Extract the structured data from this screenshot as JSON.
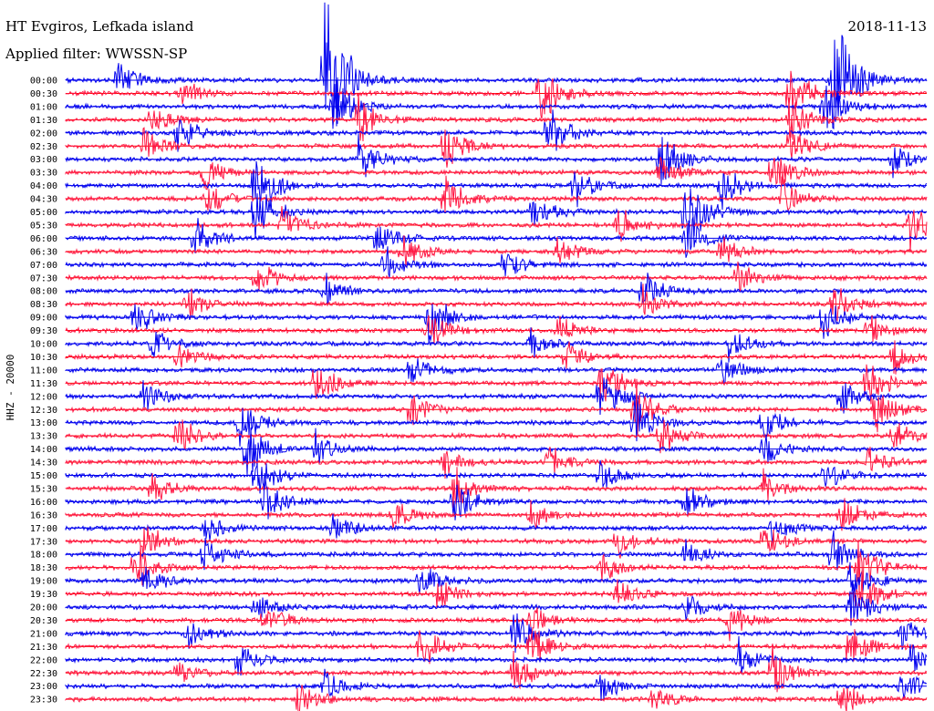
{
  "header": {
    "station": "HT Evgiros, Lefkada island",
    "date": "2018-11-13",
    "filter": "Applied filter: WWSSN-SP"
  },
  "chart_data": {
    "type": "line",
    "title": "HT Evgiros, Lefkada island",
    "ylabel": "HHZ - 20000",
    "row_times": [
      "00:00",
      "00:30",
      "01:00",
      "01:30",
      "02:00",
      "02:30",
      "03:00",
      "03:30",
      "04:00",
      "04:30",
      "05:00",
      "05:30",
      "06:00",
      "06:30",
      "07:00",
      "07:30",
      "08:00",
      "08:30",
      "09:00",
      "09:30",
      "10:00",
      "10:30",
      "11:00",
      "11:30",
      "12:00",
      "12:30",
      "13:00",
      "13:30",
      "14:00",
      "14:30",
      "15:00",
      "15:30",
      "16:00",
      "16:30",
      "17:00",
      "17:30",
      "18:00",
      "18:30",
      "19:00",
      "19:30",
      "20:00",
      "20:30",
      "21:00",
      "21:30",
      "22:00",
      "22:30",
      "23:00",
      "23:30"
    ],
    "trace_colors": [
      "#0000ee",
      "#ff1744"
    ],
    "baseline_color": "#ff0000",
    "events": [
      {
        "row": 0,
        "x": 0.3,
        "amp": 9
      },
      {
        "row": 0,
        "x": 0.06,
        "amp": 1.5
      },
      {
        "row": 0,
        "x": 0.89,
        "amp": 8
      },
      {
        "row": 1,
        "x": 0.13,
        "amp": 1.6
      },
      {
        "row": 1,
        "x": 0.55,
        "amp": 3
      },
      {
        "row": 1,
        "x": 0.84,
        "amp": 2.5
      },
      {
        "row": 2,
        "x": 0.31,
        "amp": 2.5
      },
      {
        "row": 2,
        "x": 0.88,
        "amp": 2.5
      },
      {
        "row": 3,
        "x": 0.1,
        "amp": 1.3
      },
      {
        "row": 3,
        "x": 0.34,
        "amp": 2
      },
      {
        "row": 3,
        "x": 0.84,
        "amp": 2
      },
      {
        "row": 4,
        "x": 0.13,
        "amp": 1.6
      },
      {
        "row": 4,
        "x": 0.56,
        "amp": 2.5
      },
      {
        "row": 5,
        "x": 0.09,
        "amp": 1.6
      },
      {
        "row": 5,
        "x": 0.44,
        "amp": 2
      },
      {
        "row": 5,
        "x": 0.84,
        "amp": 1.8
      },
      {
        "row": 6,
        "x": 0.34,
        "amp": 2.2
      },
      {
        "row": 6,
        "x": 0.69,
        "amp": 2.5
      },
      {
        "row": 6,
        "x": 0.96,
        "amp": 1.4
      },
      {
        "row": 7,
        "x": 0.16,
        "amp": 1.4
      },
      {
        "row": 7,
        "x": 0.69,
        "amp": 1.6
      },
      {
        "row": 7,
        "x": 0.82,
        "amp": 2
      },
      {
        "row": 8,
        "x": 0.22,
        "amp": 3
      },
      {
        "row": 8,
        "x": 0.59,
        "amp": 1.8
      },
      {
        "row": 8,
        "x": 0.76,
        "amp": 2
      },
      {
        "row": 9,
        "x": 0.16,
        "amp": 1.8
      },
      {
        "row": 9,
        "x": 0.44,
        "amp": 2.2
      },
      {
        "row": 9,
        "x": 0.83,
        "amp": 1.6
      },
      {
        "row": 10,
        "x": 0.22,
        "amp": 2.6
      },
      {
        "row": 10,
        "x": 0.54,
        "amp": 1.6
      },
      {
        "row": 10,
        "x": 0.72,
        "amp": 3.5
      },
      {
        "row": 11,
        "x": 0.25,
        "amp": 1.4
      },
      {
        "row": 11,
        "x": 0.64,
        "amp": 1.6
      },
      {
        "row": 11,
        "x": 0.98,
        "amp": 1.8
      },
      {
        "row": 12,
        "x": 0.15,
        "amp": 1.6
      },
      {
        "row": 12,
        "x": 0.36,
        "amp": 1.8
      },
      {
        "row": 12,
        "x": 0.72,
        "amp": 2.4
      },
      {
        "row": 13,
        "x": 0.39,
        "amp": 1.6
      },
      {
        "row": 13,
        "x": 0.57,
        "amp": 1.4
      },
      {
        "row": 13,
        "x": 0.76,
        "amp": 1.6
      },
      {
        "row": 14,
        "x": 0.37,
        "amp": 1.6
      },
      {
        "row": 14,
        "x": 0.51,
        "amp": 1.3
      },
      {
        "row": 15,
        "x": 0.22,
        "amp": 1.6
      },
      {
        "row": 15,
        "x": 0.78,
        "amp": 1.3
      },
      {
        "row": 16,
        "x": 0.3,
        "amp": 1.3
      },
      {
        "row": 16,
        "x": 0.67,
        "amp": 1.6
      },
      {
        "row": 17,
        "x": 0.14,
        "amp": 1.3
      },
      {
        "row": 17,
        "x": 0.67,
        "amp": 1.3
      },
      {
        "row": 17,
        "x": 0.89,
        "amp": 1.8
      },
      {
        "row": 18,
        "x": 0.08,
        "amp": 1.6
      },
      {
        "row": 18,
        "x": 0.42,
        "amp": 2.6
      },
      {
        "row": 18,
        "x": 0.88,
        "amp": 1.6
      },
      {
        "row": 19,
        "x": 0.42,
        "amp": 1.8
      },
      {
        "row": 19,
        "x": 0.57,
        "amp": 1.3
      },
      {
        "row": 19,
        "x": 0.93,
        "amp": 1.4
      },
      {
        "row": 20,
        "x": 0.1,
        "amp": 1.3
      },
      {
        "row": 20,
        "x": 0.54,
        "amp": 1.3
      },
      {
        "row": 20,
        "x": 0.77,
        "amp": 1.4
      },
      {
        "row": 21,
        "x": 0.13,
        "amp": 1.3
      },
      {
        "row": 21,
        "x": 0.58,
        "amp": 1.4
      },
      {
        "row": 21,
        "x": 0.96,
        "amp": 1.3
      },
      {
        "row": 22,
        "x": 0.4,
        "amp": 1.3
      },
      {
        "row": 22,
        "x": 0.76,
        "amp": 1.4
      },
      {
        "row": 23,
        "x": 0.29,
        "amp": 1.8
      },
      {
        "row": 23,
        "x": 0.62,
        "amp": 2.2
      },
      {
        "row": 23,
        "x": 0.93,
        "amp": 2
      },
      {
        "row": 24,
        "x": 0.09,
        "amp": 1.4
      },
      {
        "row": 24,
        "x": 0.62,
        "amp": 2
      },
      {
        "row": 24,
        "x": 0.9,
        "amp": 1.6
      },
      {
        "row": 25,
        "x": 0.4,
        "amp": 1.6
      },
      {
        "row": 25,
        "x": 0.66,
        "amp": 2.5
      },
      {
        "row": 25,
        "x": 0.94,
        "amp": 2
      },
      {
        "row": 26,
        "x": 0.2,
        "amp": 2
      },
      {
        "row": 26,
        "x": 0.66,
        "amp": 2.2
      },
      {
        "row": 26,
        "x": 0.81,
        "amp": 1.6
      },
      {
        "row": 27,
        "x": 0.13,
        "amp": 1.6
      },
      {
        "row": 27,
        "x": 0.69,
        "amp": 1.6
      },
      {
        "row": 27,
        "x": 0.96,
        "amp": 1.3
      },
      {
        "row": 28,
        "x": 0.21,
        "amp": 2.5
      },
      {
        "row": 28,
        "x": 0.29,
        "amp": 1.3
      },
      {
        "row": 28,
        "x": 0.81,
        "amp": 1.3
      },
      {
        "row": 29,
        "x": 0.44,
        "amp": 1.3
      },
      {
        "row": 29,
        "x": 0.56,
        "amp": 1.6
      },
      {
        "row": 29,
        "x": 0.93,
        "amp": 1.3
      },
      {
        "row": 30,
        "x": 0.22,
        "amp": 2
      },
      {
        "row": 30,
        "x": 0.62,
        "amp": 1.4
      },
      {
        "row": 30,
        "x": 0.88,
        "amp": 1.3
      },
      {
        "row": 31,
        "x": 0.1,
        "amp": 1.3
      },
      {
        "row": 31,
        "x": 0.45,
        "amp": 1.6
      },
      {
        "row": 31,
        "x": 0.81,
        "amp": 1.3
      },
      {
        "row": 32,
        "x": 0.23,
        "amp": 2
      },
      {
        "row": 32,
        "x": 0.45,
        "amp": 1.8
      },
      {
        "row": 32,
        "x": 0.72,
        "amp": 1.4
      },
      {
        "row": 33,
        "x": 0.38,
        "amp": 1.3
      },
      {
        "row": 33,
        "x": 0.54,
        "amp": 1.3
      },
      {
        "row": 33,
        "x": 0.9,
        "amp": 1.6
      },
      {
        "row": 34,
        "x": 0.16,
        "amp": 1.4
      },
      {
        "row": 34,
        "x": 0.31,
        "amp": 1.3
      },
      {
        "row": 34,
        "x": 0.82,
        "amp": 1.3
      },
      {
        "row": 35,
        "x": 0.09,
        "amp": 1.6
      },
      {
        "row": 35,
        "x": 0.64,
        "amp": 1.3
      },
      {
        "row": 35,
        "x": 0.81,
        "amp": 1.4
      },
      {
        "row": 36,
        "x": 0.16,
        "amp": 1.8
      },
      {
        "row": 36,
        "x": 0.72,
        "amp": 1.3
      },
      {
        "row": 36,
        "x": 0.89,
        "amp": 2
      },
      {
        "row": 37,
        "x": 0.08,
        "amp": 2
      },
      {
        "row": 37,
        "x": 0.62,
        "amp": 1.3
      },
      {
        "row": 37,
        "x": 0.92,
        "amp": 2.4
      },
      {
        "row": 38,
        "x": 0.09,
        "amp": 1.4
      },
      {
        "row": 38,
        "x": 0.41,
        "amp": 1.6
      },
      {
        "row": 38,
        "x": 0.91,
        "amp": 2.2
      },
      {
        "row": 39,
        "x": 0.43,
        "amp": 1.3
      },
      {
        "row": 39,
        "x": 0.64,
        "amp": 1.4
      },
      {
        "row": 39,
        "x": 0.92,
        "amp": 2.2
      },
      {
        "row": 40,
        "x": 0.22,
        "amp": 1.3
      },
      {
        "row": 40,
        "x": 0.72,
        "amp": 1.3
      },
      {
        "row": 40,
        "x": 0.91,
        "amp": 2
      },
      {
        "row": 41,
        "x": 0.23,
        "amp": 1.6
      },
      {
        "row": 41,
        "x": 0.54,
        "amp": 1.3
      },
      {
        "row": 41,
        "x": 0.77,
        "amp": 1.4
      },
      {
        "row": 42,
        "x": 0.14,
        "amp": 1.4
      },
      {
        "row": 42,
        "x": 0.52,
        "amp": 2
      },
      {
        "row": 42,
        "x": 0.97,
        "amp": 1.4
      },
      {
        "row": 43,
        "x": 0.41,
        "amp": 2.2
      },
      {
        "row": 43,
        "x": 0.54,
        "amp": 1.8
      },
      {
        "row": 43,
        "x": 0.91,
        "amp": 2
      },
      {
        "row": 44,
        "x": 0.2,
        "amp": 1.3
      },
      {
        "row": 44,
        "x": 0.78,
        "amp": 1.6
      },
      {
        "row": 44,
        "x": 0.98,
        "amp": 1.4
      },
      {
        "row": 45,
        "x": 0.13,
        "amp": 1.3
      },
      {
        "row": 45,
        "x": 0.52,
        "amp": 1.6
      },
      {
        "row": 45,
        "x": 0.82,
        "amp": 2
      },
      {
        "row": 46,
        "x": 0.3,
        "amp": 1.4
      },
      {
        "row": 46,
        "x": 0.62,
        "amp": 1.3
      },
      {
        "row": 46,
        "x": 0.97,
        "amp": 1.6
      },
      {
        "row": 47,
        "x": 0.27,
        "amp": 1.6
      },
      {
        "row": 47,
        "x": 0.68,
        "amp": 1.3
      },
      {
        "row": 47,
        "x": 0.9,
        "amp": 1.4
      }
    ]
  }
}
